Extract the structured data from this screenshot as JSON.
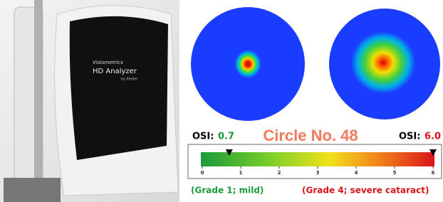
{
  "device": {
    "brand": "Visiometrics",
    "model": "HD Analyzer",
    "maker": "by Keeler"
  },
  "left": {
    "osi_label": "OSI:",
    "osi_value": {
      "value": 0.7,
      "label": "0.7"
    },
    "grade": "(Grade 1; mild)"
  },
  "right": {
    "osi_label": "OSI:",
    "osi_value": {
      "value": 6,
      "label": "6.0"
    },
    "grade": "(Grade 4; severe cataract)"
  },
  "watermark": "Circle No. 48",
  "scale": {
    "range": [
      0,
      6
    ],
    "ticks": [
      0,
      1,
      2,
      3,
      4,
      5,
      6
    ]
  }
}
